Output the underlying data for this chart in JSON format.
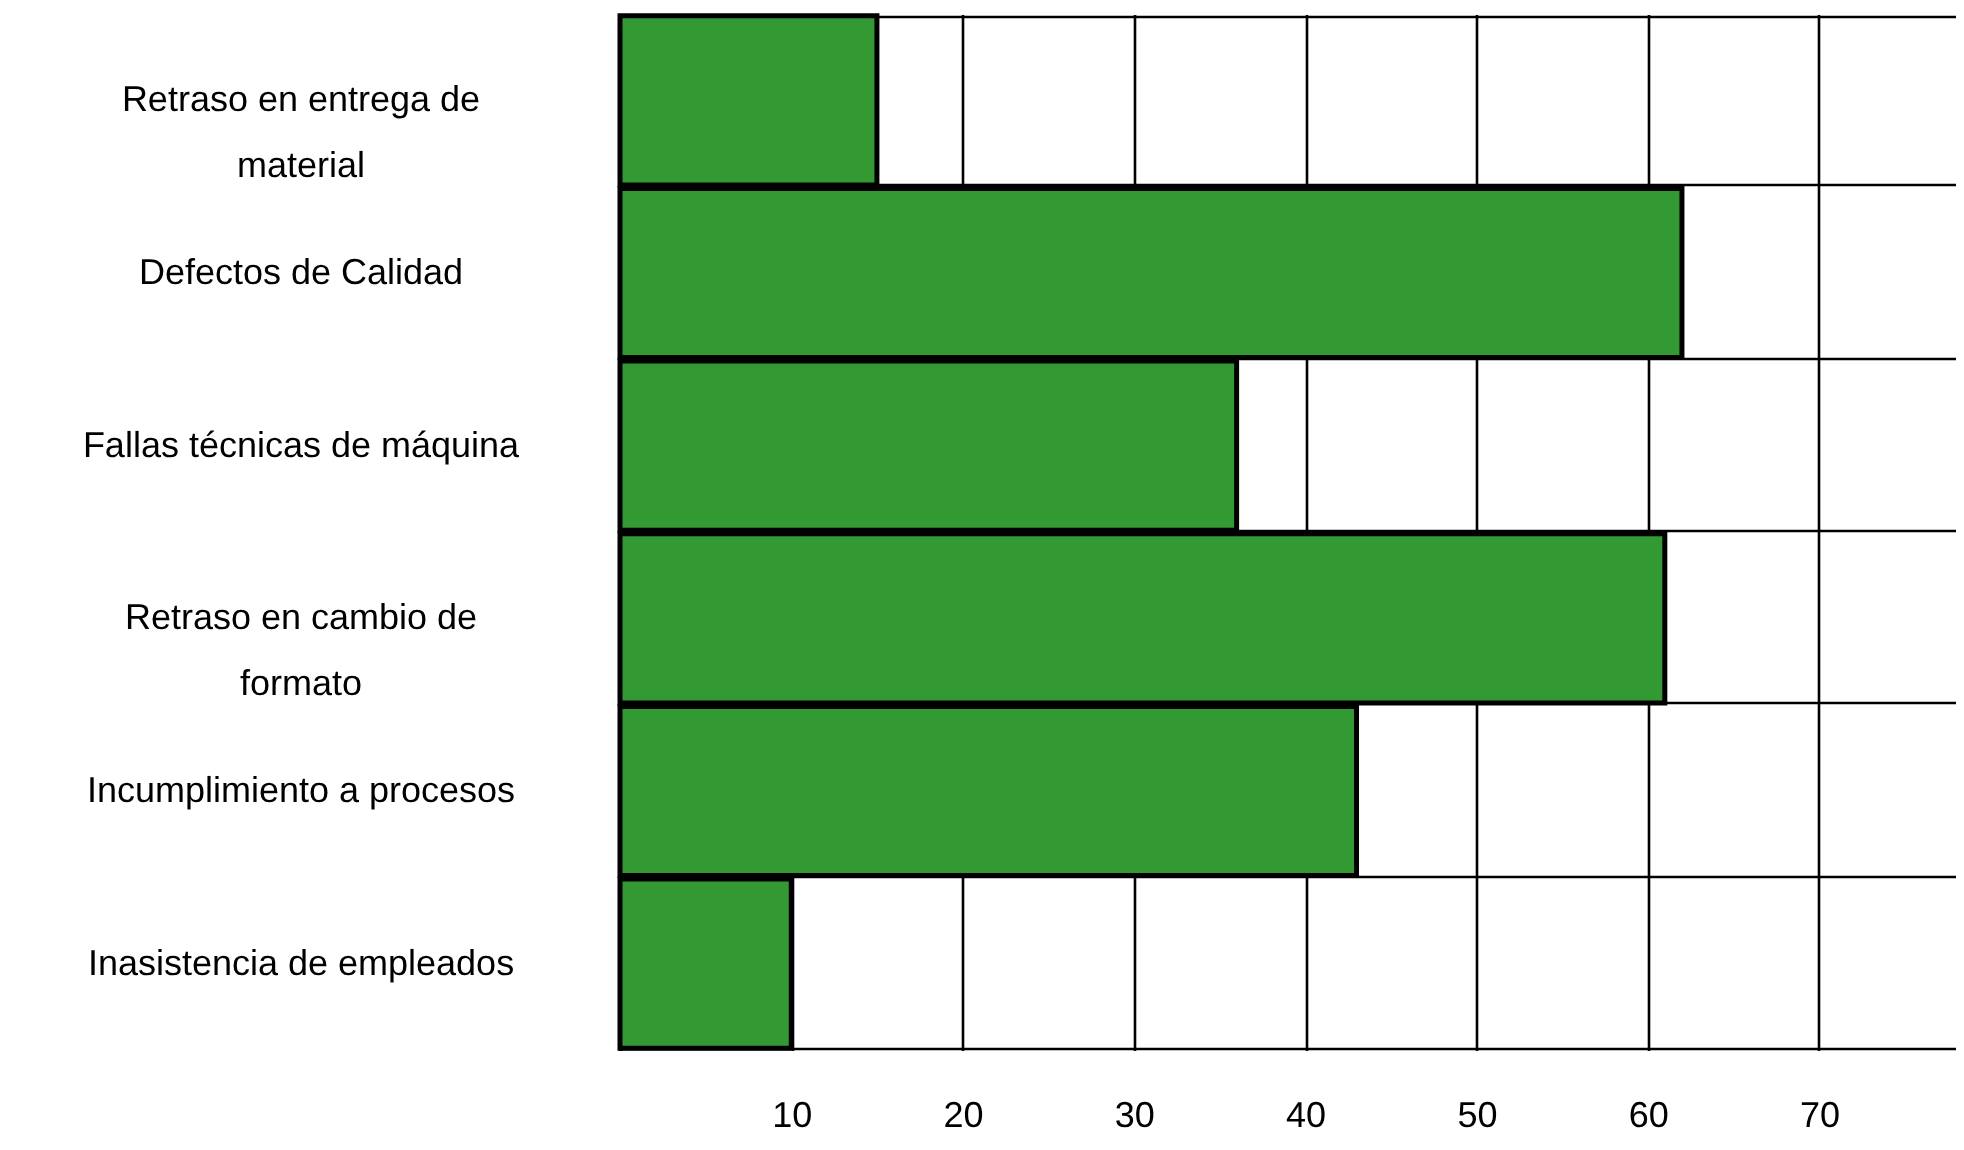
{
  "chart_data": {
    "type": "bar",
    "orientation": "horizontal",
    "categories": [
      "Retraso en entrega de material",
      "Defectos de Calidad",
      "Fallas  técnicas de máquina",
      "Retraso en cambio de formato",
      "Incumplimiento a procesos",
      "Inasistencia de empleados"
    ],
    "values": [
      15,
      62,
      36,
      61,
      43,
      10
    ],
    "color": "#339933",
    "xlim": [
      0,
      78
    ],
    "xticks": [
      10,
      20,
      30,
      40,
      50,
      60,
      70
    ],
    "grid": true
  }
}
